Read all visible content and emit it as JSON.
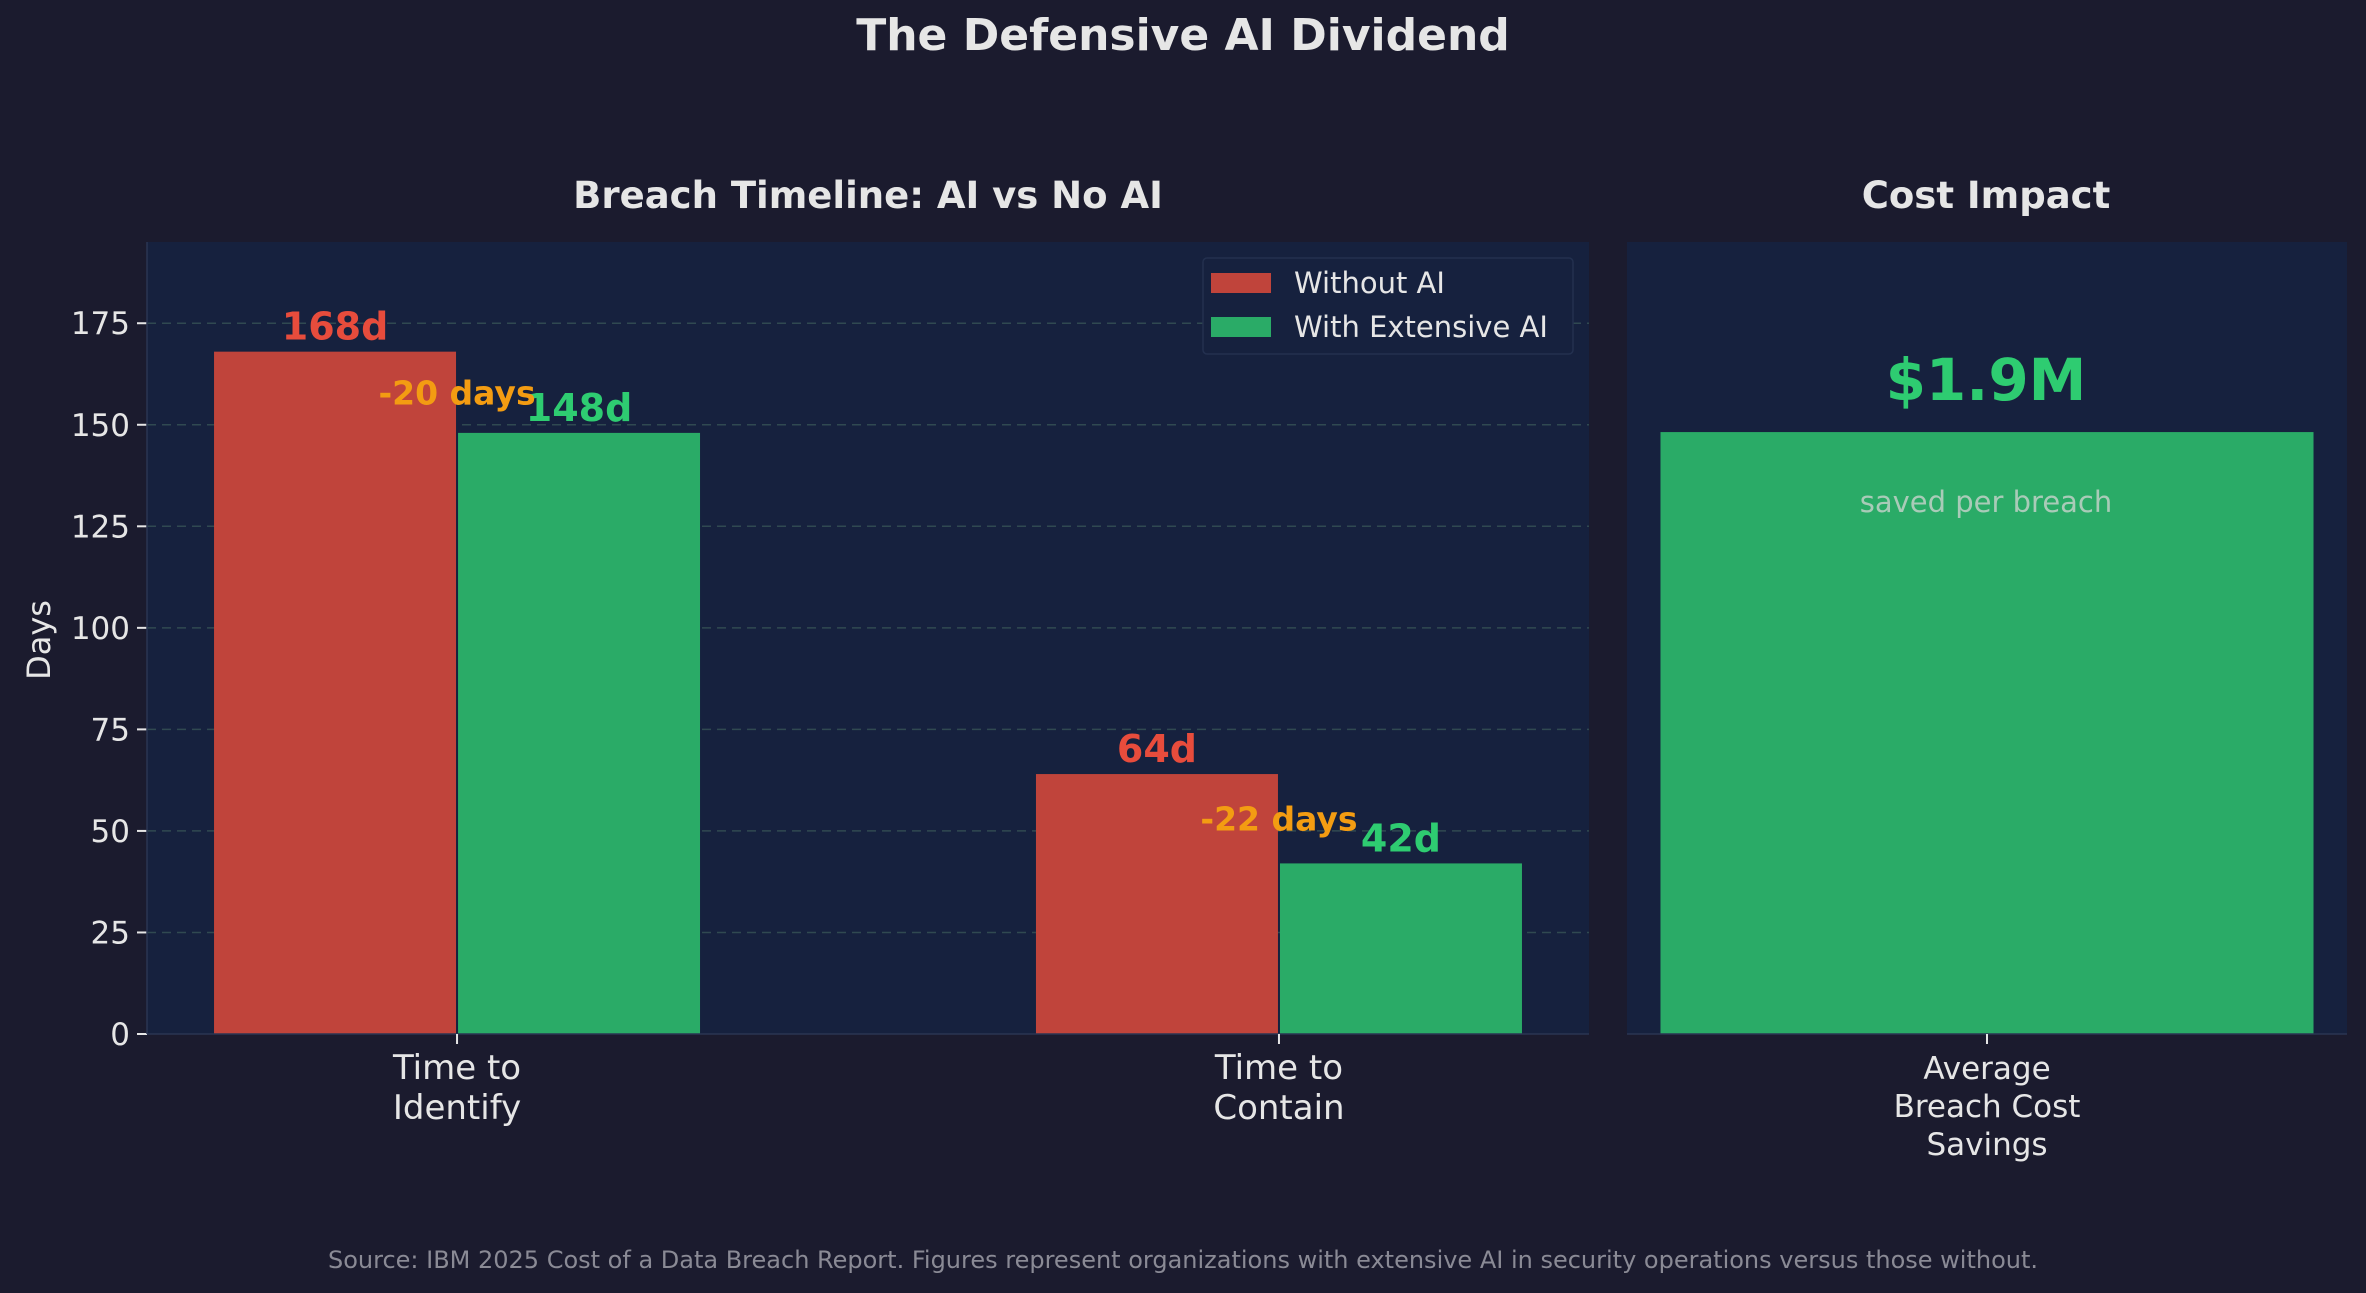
{
  "figure": {
    "title": "The Defensive AI Dividend",
    "source": "Source: IBM 2025 Cost of a Data Breach Report. Figures represent organizations with extensive AI in security operations versus those without.",
    "colors": {
      "background": "#1b1b2e",
      "panel": "#16213e",
      "without_ai": "#c0443b",
      "with_ai": "#2aab67",
      "without_ai_label": "#e74c3c",
      "with_ai_label": "#2ecc71",
      "delta_label": "#f39c12",
      "text": "#e6e6e6",
      "muted_text": "#a9cbb8",
      "source_text": "#8a8a95"
    }
  },
  "chart_data": [
    {
      "type": "bar",
      "title": "Breach Timeline: AI vs No AI",
      "xlabel": "",
      "ylabel": "Days",
      "ylim": [
        0,
        195
      ],
      "yticks": [
        "0",
        "25",
        "50",
        "75",
        "100",
        "125",
        "150",
        "175"
      ],
      "grid": true,
      "legend_position": "top-right",
      "categories": [
        "Time to\nIdentify",
        "Time to\nContain"
      ],
      "series": [
        {
          "name": "Without AI",
          "values": [
            168,
            64
          ],
          "labels": [
            "168d",
            "64d"
          ]
        },
        {
          "name": "With Extensive AI",
          "values": [
            148,
            42
          ],
          "labels": [
            "148d",
            "42d"
          ]
        }
      ],
      "annotations": [
        "-20 days",
        "-22 days"
      ]
    },
    {
      "type": "bar",
      "title": "Cost Impact",
      "categories": [
        "Average\nBreach Cost\nSavings"
      ],
      "values": [
        1.9
      ],
      "unit": "$M",
      "value_label": "$1.9M",
      "value_caption": "saved per breach",
      "ylim": [
        0,
        2.5
      ]
    }
  ]
}
